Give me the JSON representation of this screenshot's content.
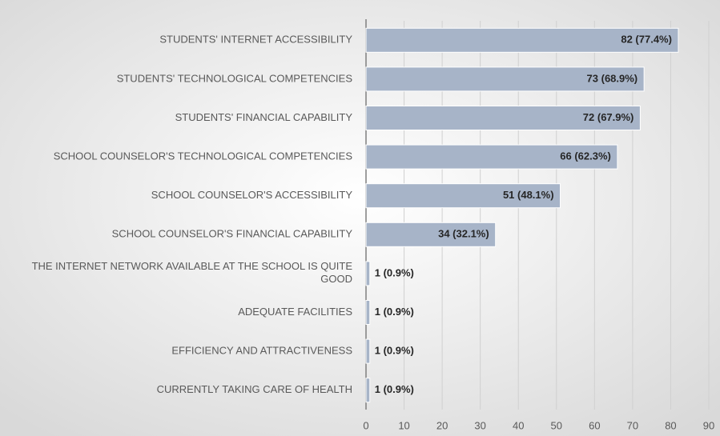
{
  "chart_data": {
    "type": "hbar",
    "categories": [
      "STUDENTS' INTERNET ACCESSIBILITY",
      "STUDENTS' TECHNOLOGICAL COMPETENCIES",
      "STUDENTS' FINANCIAL CAPABILITY",
      "SCHOOL COUNSELOR'S TECHNOLOGICAL COMPETENCIES",
      "SCHOOL COUNSELOR'S ACCESSIBILITY",
      "SCHOOL COUNSELOR'S FINANCIAL CAPABILITY",
      "THE INTERNET NETWORK AVAILABLE AT THE SCHOOL IS QUITE GOOD",
      "ADEQUATE FACILITIES",
      "EFFICIENCY AND ATTRACTIVENESS",
      "CURRENTLY TAKING CARE OF HEALTH"
    ],
    "values": [
      82,
      73,
      72,
      66,
      51,
      34,
      1,
      1,
      1,
      1
    ],
    "value_labels": [
      "82 (77.4%)",
      "73 (68.9%)",
      "72 (67.9%)",
      "66 (62.3%)",
      "51 (48.1%)",
      "34 (32.1%)",
      "1 (0.9%)",
      "1 (0.9%)",
      "1 (0.9%)",
      "1 (0.9%)"
    ],
    "color": "#a7b4c8",
    "xlim": [
      0,
      90
    ],
    "xticks": [
      0,
      10,
      20,
      30,
      40,
      50,
      60,
      70,
      80,
      90
    ],
    "grid": true
  }
}
